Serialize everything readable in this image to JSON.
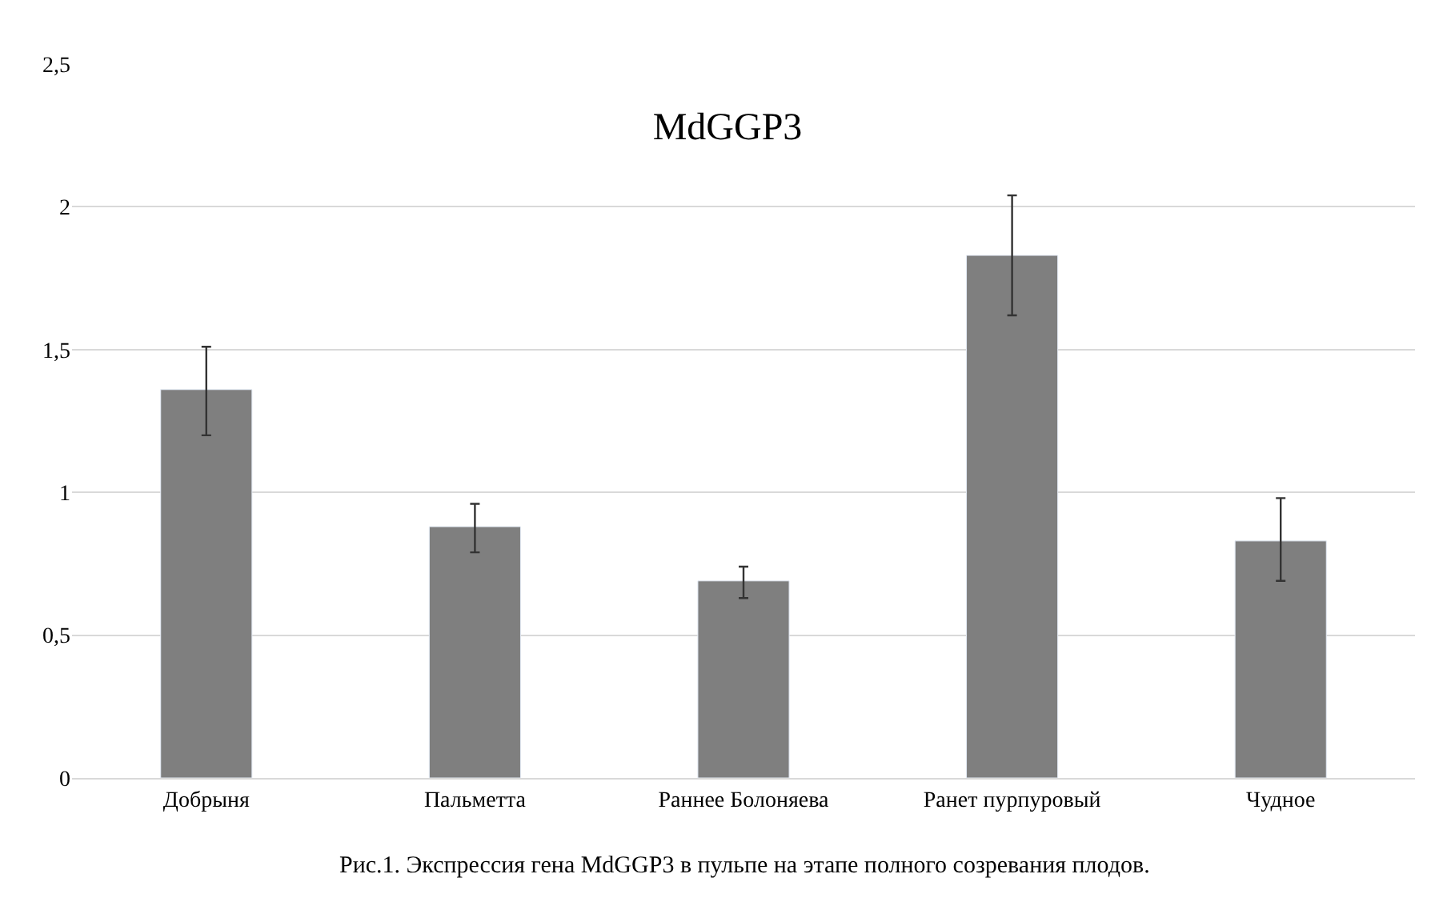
{
  "chart_data": {
    "type": "bar",
    "title": "MdGGP3",
    "categories": [
      "Добрыня",
      "Пальметта",
      "Раннее Болоняева",
      "Ранет пурпуровый",
      "Чудное"
    ],
    "values": [
      1.36,
      0.88,
      0.69,
      1.83,
      0.83
    ],
    "errors": [
      [
        1.2,
        1.51
      ],
      [
        0.79,
        0.96
      ],
      [
        0.63,
        0.74
      ],
      [
        1.62,
        2.04
      ],
      [
        0.69,
        0.98
      ]
    ],
    "color": "#7f7f7f",
    "ylim": [
      0,
      2.5
    ],
    "yticks": [
      0,
      {
        "value": 0.5,
        "label": "0,5"
      },
      1,
      {
        "value": 1.5,
        "label": "1,5"
      },
      2,
      {
        "value": 2.5,
        "label": "2,5"
      }
    ],
    "grid": "y",
    "annotations": [
      "Рис.1. Экспрессия гена MdGGP3 в пульпе на этапе полного созревания плодов."
    ]
  }
}
